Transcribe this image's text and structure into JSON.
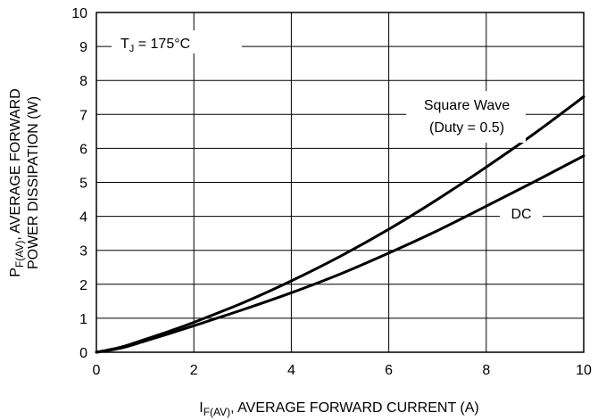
{
  "chart_data": {
    "type": "line",
    "title": "",
    "xlabel": {
      "main": "I",
      "sub": "F(AV)",
      "rest": ", AVERAGE FORWARD CURRENT (A)"
    },
    "ylabel": {
      "line1_main": "P",
      "line1_sub": "F(AV)",
      "line1_rest": ", AVERAGE FORWARD",
      "line2": "POWER DISSIPATION (W)"
    },
    "xlim": [
      0,
      10
    ],
    "ylim": [
      0,
      10
    ],
    "xticks": [
      "0",
      "2",
      "4",
      "6",
      "8",
      "10"
    ],
    "yticks": [
      "0",
      "1",
      "2",
      "3",
      "4",
      "5",
      "6",
      "7",
      "8",
      "9",
      "10"
    ],
    "grid": true,
    "annotation": {
      "main": "T",
      "sub": "J",
      "rest": " = 175°C"
    },
    "series": [
      {
        "name": "Square Wave",
        "name_line2": "(Duty = 0.5)",
        "x": [
          0,
          0.5,
          1,
          1.5,
          2,
          3,
          4,
          5,
          6,
          7,
          8,
          9,
          10
        ],
        "y": [
          0,
          0.15,
          0.38,
          0.62,
          0.88,
          1.45,
          2.1,
          2.82,
          3.62,
          4.5,
          5.45,
          6.45,
          7.52
        ]
      },
      {
        "name": "DC",
        "x": [
          0,
          0.5,
          1,
          1.5,
          2,
          3,
          4,
          5,
          6,
          7,
          8,
          9,
          10
        ],
        "y": [
          0,
          0.12,
          0.33,
          0.55,
          0.78,
          1.25,
          1.75,
          2.3,
          2.92,
          3.58,
          4.3,
          5.03,
          5.78
        ]
      }
    ]
  }
}
